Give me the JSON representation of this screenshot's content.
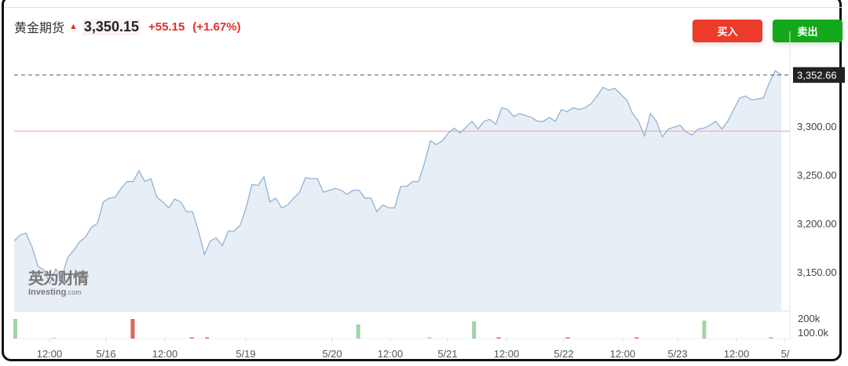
{
  "header": {
    "name": "黄金期货",
    "direction_icon": "arrow-up-icon",
    "price": "3,350.15",
    "change": "+55.15",
    "change_pct": "(+1.67%)"
  },
  "buttons": {
    "buy": "买入",
    "sell": "卖出"
  },
  "colors": {
    "up": "#e0302a",
    "buy": "#ec3a2b",
    "sell": "#13a81a",
    "line": "#8fb4d6",
    "area": "#e8eef6",
    "ref_line": "#f0a0a0"
  },
  "watermark": {
    "cn": "英为财情",
    "en": "Investing",
    "en_suffix": ".com"
  },
  "chart_data": {
    "type": "area",
    "y_ticks": [
      "3,300.00",
      "3,250.00",
      "3,200.00",
      "3,150.00"
    ],
    "y_tick_values": [
      3300,
      3250,
      3200,
      3150
    ],
    "ylim": [
      3122,
      3380
    ],
    "last_price_label": "3,352.66",
    "last_price": 3352.66,
    "reference_price": 3295,
    "x_ticks": [
      "12:00",
      "5/16",
      "12:00",
      "5/19",
      "5/20",
      "12:00",
      "5/21",
      "12:00",
      "5/22",
      "12:00",
      "5/23",
      "12:00",
      "5/"
    ],
    "grid": false,
    "values": [
      3182,
      3188,
      3190,
      3176,
      3156,
      3152,
      3138,
      3153,
      3144,
      3165,
      3172,
      3181,
      3186,
      3196,
      3200,
      3222,
      3226,
      3227,
      3236,
      3243,
      3243,
      3254,
      3243,
      3246,
      3227,
      3222,
      3216,
      3225,
      3222,
      3212,
      3212,
      3192,
      3168,
      3182,
      3185,
      3177,
      3192,
      3192,
      3198,
      3216,
      3240,
      3239,
      3248,
      3222,
      3226,
      3216,
      3219,
      3226,
      3232,
      3247,
      3246,
      3246,
      3232,
      3234,
      3236,
      3234,
      3230,
      3234,
      3234,
      3226,
      3226,
      3212,
      3219,
      3216,
      3216,
      3238,
      3238,
      3243,
      3243,
      3262,
      3285,
      3281,
      3285,
      3293,
      3298,
      3293,
      3299,
      3305,
      3297,
      3305,
      3307,
      3302,
      3319,
      3317,
      3310,
      3313,
      3311,
      3309,
      3305,
      3305,
      3309,
      3305,
      3317,
      3315,
      3319,
      3317,
      3319,
      3323,
      3331,
      3340,
      3337,
      3339,
      3333,
      3327,
      3313,
      3305,
      3290,
      3313,
      3305,
      3289,
      3297,
      3299,
      3301,
      3294,
      3291,
      3297,
      3298,
      3301,
      3305,
      3297,
      3305,
      3317,
      3329,
      3331,
      3327,
      3328,
      3329,
      3345,
      3357,
      3353
    ],
    "volume": {
      "y_ticks": [
        "200k",
        "100.0k"
      ],
      "bars": [
        {
          "pos": 0.0,
          "value": 250000,
          "dir": "up"
        },
        {
          "pos": 0.153,
          "value": 250000,
          "dir": "down"
        },
        {
          "pos": 0.447,
          "value": 180000,
          "dir": "up"
        },
        {
          "pos": 0.598,
          "value": 220000,
          "dir": "up"
        },
        {
          "pos": 0.898,
          "value": 230000,
          "dir": "up"
        },
        {
          "pos": 0.05,
          "value": 10000,
          "dir": "up"
        },
        {
          "pos": 0.23,
          "value": 15000,
          "dir": "down"
        },
        {
          "pos": 0.25,
          "value": 15000,
          "dir": "down"
        },
        {
          "pos": 0.54,
          "value": 15000,
          "dir": "up"
        },
        {
          "pos": 0.63,
          "value": 15000,
          "dir": "down"
        },
        {
          "pos": 0.72,
          "value": 15000,
          "dir": "down"
        },
        {
          "pos": 0.81,
          "value": 15000,
          "dir": "down"
        },
        {
          "pos": 0.985,
          "value": 20000,
          "dir": "up"
        }
      ]
    }
  }
}
